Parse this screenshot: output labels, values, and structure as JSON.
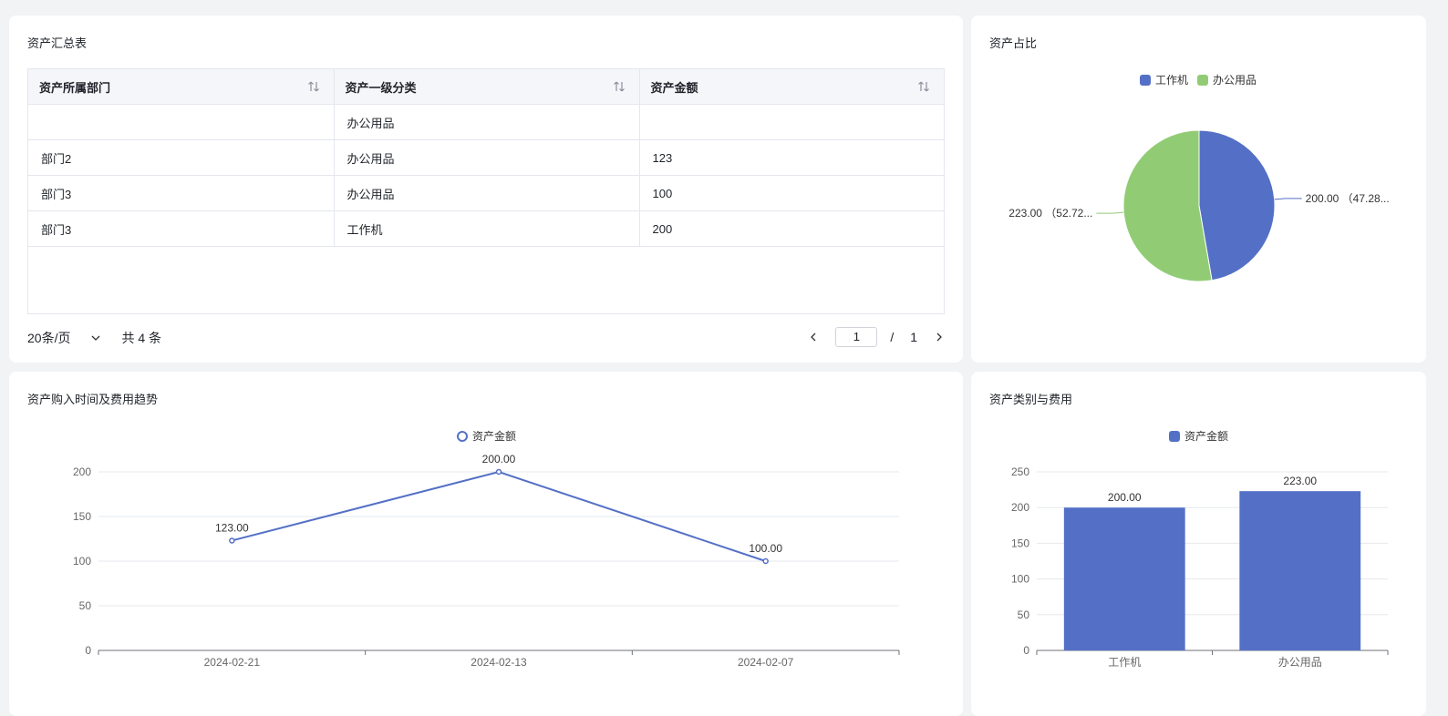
{
  "colors": {
    "blue": "#5470c6",
    "green": "#91cc75"
  },
  "table_card": {
    "title": "资产汇总表",
    "columns": [
      "资产所属部门",
      "资产一级分类",
      "资产金额"
    ],
    "rows": [
      [
        "",
        "办公用品",
        ""
      ],
      [
        "部门2",
        "办公用品",
        "123"
      ],
      [
        "部门3",
        "办公用品",
        "100"
      ],
      [
        "部门3",
        "工作机",
        "200"
      ]
    ],
    "page_size_label": "20条/页",
    "total_label": "共 4 条",
    "current_page": "1",
    "page_sep": "/",
    "total_pages": "1"
  },
  "pie_card": {
    "title": "资产占比",
    "legend": [
      "工作机",
      "办公用品"
    ]
  },
  "line_card": {
    "title": "资产购入时间及费用趋势",
    "legend": "资产金额"
  },
  "bar_card": {
    "title": "资产类别与费用",
    "legend": "资产金额"
  },
  "chart_data": [
    {
      "type": "pie",
      "categories": [
        "工作机",
        "办公用品"
      ],
      "values": [
        200,
        223
      ],
      "labels": [
        "200.00 （47.28...",
        "223.00 （52.72..."
      ]
    },
    {
      "type": "line",
      "x": [
        "2024-02-21",
        "2024-02-13",
        "2024-02-07"
      ],
      "series": [
        {
          "name": "资产金额",
          "values": [
            123,
            200,
            100
          ]
        }
      ],
      "data_labels": [
        "123.00",
        "200.00",
        "100.00"
      ],
      "yticks": [
        "0",
        "50",
        "100",
        "150",
        "200"
      ],
      "ylim": [
        0,
        200
      ],
      "grid": true,
      "legend": "top-center"
    },
    {
      "type": "bar",
      "categories": [
        "工作机",
        "办公用品"
      ],
      "series": [
        {
          "name": "资产金额",
          "values": [
            200,
            223
          ]
        }
      ],
      "data_labels": [
        "200.00",
        "223.00"
      ],
      "yticks": [
        "0",
        "50",
        "100",
        "150",
        "200",
        "250"
      ],
      "ylim": [
        0,
        250
      ],
      "grid": true,
      "legend": "top-center"
    }
  ]
}
